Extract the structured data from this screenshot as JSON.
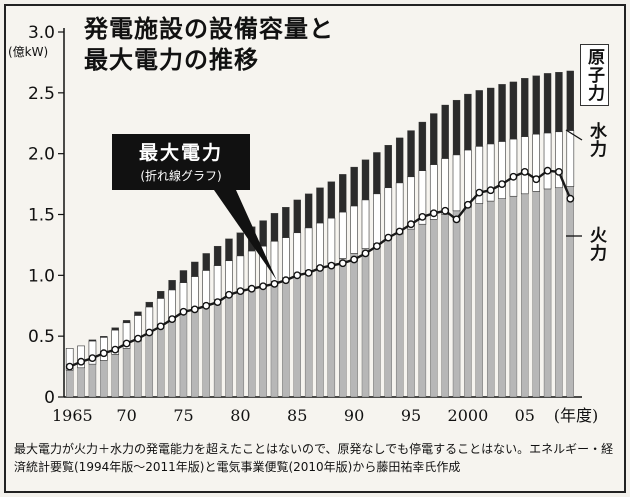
{
  "page": {
    "title_line1": "発電施設の設備容量と",
    "title_line2": "最大電力の推移",
    "unit": "(億kW)",
    "source": "最大電力が火力＋水力の発電能力を超えたことはないので、原発なしでも停電することはない。エネルギー・経済統計要覧(1994年版～2011年版)と電気事業便覧(2010年版)から藤田祐幸氏作成"
  },
  "legend": {
    "callout_big": "最大電力",
    "callout_small": "(折れ線グラフ)",
    "nuclear": "原子力",
    "hydro": "水力",
    "thermal": "火力"
  },
  "colors": {
    "nuclear": "#2b2b2b",
    "hydro": "#ffffff",
    "thermal": "#b7b7b7",
    "line": "#1a1a1a"
  },
  "chart_data": {
    "type": "bar",
    "stacked": true,
    "ylim": [
      0,
      3.0
    ],
    "yticks": [
      "0",
      "0.5",
      "1.0",
      "1.5",
      "2.0",
      "2.5",
      "3.0"
    ],
    "x_tick_labels": [
      "1965",
      "70",
      "75",
      "80",
      "85",
      "90",
      "95",
      "2000",
      "05",
      "(年度)"
    ],
    "categories": [
      1965,
      1966,
      1967,
      1968,
      1969,
      1970,
      1971,
      1972,
      1973,
      1974,
      1975,
      1976,
      1977,
      1978,
      1979,
      1980,
      1981,
      1982,
      1983,
      1984,
      1985,
      1986,
      1987,
      1988,
      1989,
      1990,
      1991,
      1992,
      1993,
      1994,
      1995,
      1996,
      1997,
      1998,
      1999,
      2000,
      2001,
      2002,
      2003,
      2004,
      2005,
      2006,
      2007,
      2008,
      2009
    ],
    "series": [
      {
        "name": "火力",
        "values": [
          0.22,
          0.24,
          0.27,
          0.3,
          0.35,
          0.4,
          0.46,
          0.52,
          0.58,
          0.64,
          0.69,
          0.73,
          0.77,
          0.8,
          0.83,
          0.86,
          0.89,
          0.92,
          0.95,
          0.98,
          1.01,
          1.04,
          1.07,
          1.1,
          1.14,
          1.18,
          1.22,
          1.26,
          1.3,
          1.34,
          1.38,
          1.42,
          1.46,
          1.5,
          1.53,
          1.56,
          1.59,
          1.61,
          1.63,
          1.65,
          1.67,
          1.69,
          1.71,
          1.72,
          1.73
        ]
      },
      {
        "name": "水力",
        "values": [
          0.18,
          0.18,
          0.19,
          0.19,
          0.2,
          0.21,
          0.21,
          0.22,
          0.23,
          0.24,
          0.25,
          0.26,
          0.27,
          0.28,
          0.29,
          0.3,
          0.31,
          0.32,
          0.33,
          0.33,
          0.34,
          0.35,
          0.36,
          0.37,
          0.38,
          0.39,
          0.4,
          0.41,
          0.42,
          0.42,
          0.43,
          0.44,
          0.45,
          0.46,
          0.46,
          0.47,
          0.47,
          0.47,
          0.47,
          0.47,
          0.47,
          0.47,
          0.46,
          0.46,
          0.46
        ]
      },
      {
        "name": "原子力",
        "values": [
          0.0,
          0.0,
          0.01,
          0.01,
          0.02,
          0.02,
          0.03,
          0.04,
          0.06,
          0.08,
          0.1,
          0.12,
          0.14,
          0.16,
          0.18,
          0.19,
          0.2,
          0.21,
          0.23,
          0.25,
          0.27,
          0.28,
          0.29,
          0.3,
          0.31,
          0.32,
          0.33,
          0.34,
          0.35,
          0.37,
          0.38,
          0.4,
          0.42,
          0.44,
          0.45,
          0.46,
          0.46,
          0.46,
          0.47,
          0.47,
          0.48,
          0.48,
          0.49,
          0.49,
          0.49
        ]
      }
    ],
    "line": {
      "name": "最大電力",
      "values": [
        0.25,
        0.29,
        0.32,
        0.36,
        0.39,
        0.44,
        0.48,
        0.53,
        0.58,
        0.64,
        0.7,
        0.72,
        0.75,
        0.78,
        0.84,
        0.87,
        0.89,
        0.91,
        0.93,
        0.96,
        1.0,
        1.02,
        1.06,
        1.08,
        1.1,
        1.13,
        1.18,
        1.24,
        1.31,
        1.36,
        1.42,
        1.48,
        1.51,
        1.53,
        1.46,
        1.58,
        1.68,
        1.7,
        1.75,
        1.81,
        1.85,
        1.79,
        1.86,
        1.85,
        1.63
      ]
    }
  }
}
